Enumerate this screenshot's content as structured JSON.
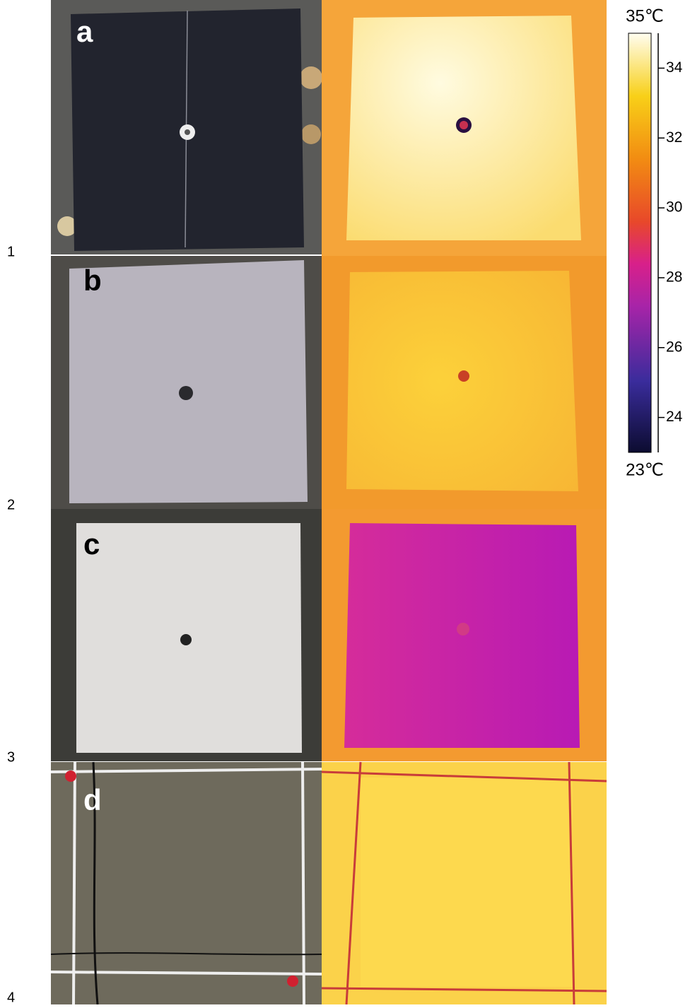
{
  "panels": [
    {
      "row": "1",
      "label": "a"
    },
    {
      "row": "2",
      "label": "b"
    },
    {
      "row": "3",
      "label": "c"
    },
    {
      "row": "4",
      "label": "d"
    }
  ],
  "colorbar": {
    "max_label": "35℃",
    "min_label": "23℃",
    "min": 23,
    "max": 35,
    "ticks": [
      24,
      26,
      28,
      30,
      32,
      34
    ]
  }
}
